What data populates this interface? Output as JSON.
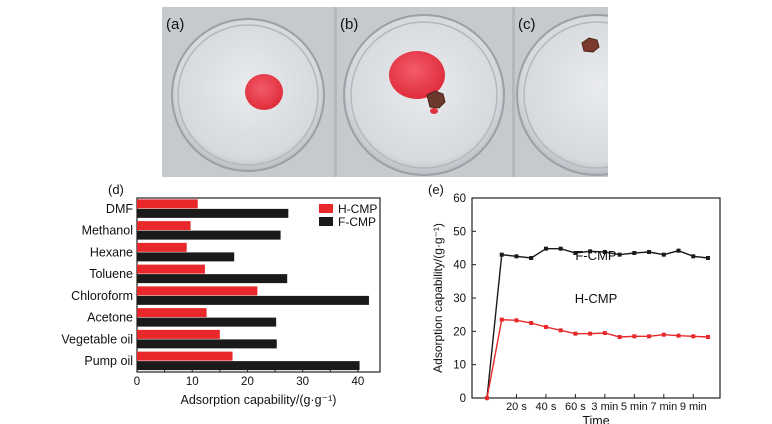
{
  "panels": {
    "photos": [
      {
        "label": "(a)"
      },
      {
        "label": "(b)"
      },
      {
        "label": "(c)"
      }
    ],
    "d_label": "(d)",
    "e_label": "(e)"
  },
  "chart_data": [
    {
      "type": "bar",
      "orientation": "horizontal",
      "categories": [
        "DMF",
        "Methanol",
        "Hexane",
        "Toluene",
        "Chloroform",
        "Acetone",
        "Vegetable oil",
        "Pump oil"
      ],
      "series": [
        {
          "name": "H-CMP",
          "color": "#e8282a",
          "values": [
            11.0,
            9.7,
            9.0,
            12.3,
            21.8,
            12.6,
            15.0,
            17.3
          ]
        },
        {
          "name": "F-CMP",
          "color": "#1a1a1a",
          "values": [
            27.4,
            26.0,
            17.6,
            27.2,
            42.0,
            25.2,
            25.3,
            40.3
          ]
        }
      ],
      "xlabel": "Adsorption capability/(g·g⁻¹)",
      "xticks": [
        0,
        10,
        20,
        30,
        40
      ],
      "xlim": [
        0,
        44
      ],
      "legend": "top-right"
    },
    {
      "type": "line",
      "x_labels": [
        "20 s",
        "40 s",
        "60 s",
        "3 min",
        "5 min",
        "7 min",
        "9 min"
      ],
      "series": [
        {
          "name": "F-CMP",
          "color": "#1a1a1a",
          "values": [
            0,
            43.0,
            42.5,
            42.0,
            44.8,
            44.8,
            43.5,
            44.0,
            43.8,
            43.0,
            43.5,
            43.8,
            43.0,
            44.2,
            42.5,
            42.0
          ]
        },
        {
          "name": "H-CMP",
          "color": "#e8282a",
          "values": [
            0,
            23.5,
            23.3,
            22.5,
            21.3,
            20.3,
            19.3,
            19.3,
            19.5,
            18.3,
            18.5,
            18.5,
            19.0,
            18.7,
            18.5,
            18.3
          ]
        }
      ],
      "xlabel": "Time",
      "ylabel": "Adsorption capability/(g·g⁻¹)",
      "yticks": [
        0,
        10,
        20,
        30,
        40,
        50,
        60
      ],
      "ylim": [
        0,
        60
      ]
    }
  ]
}
